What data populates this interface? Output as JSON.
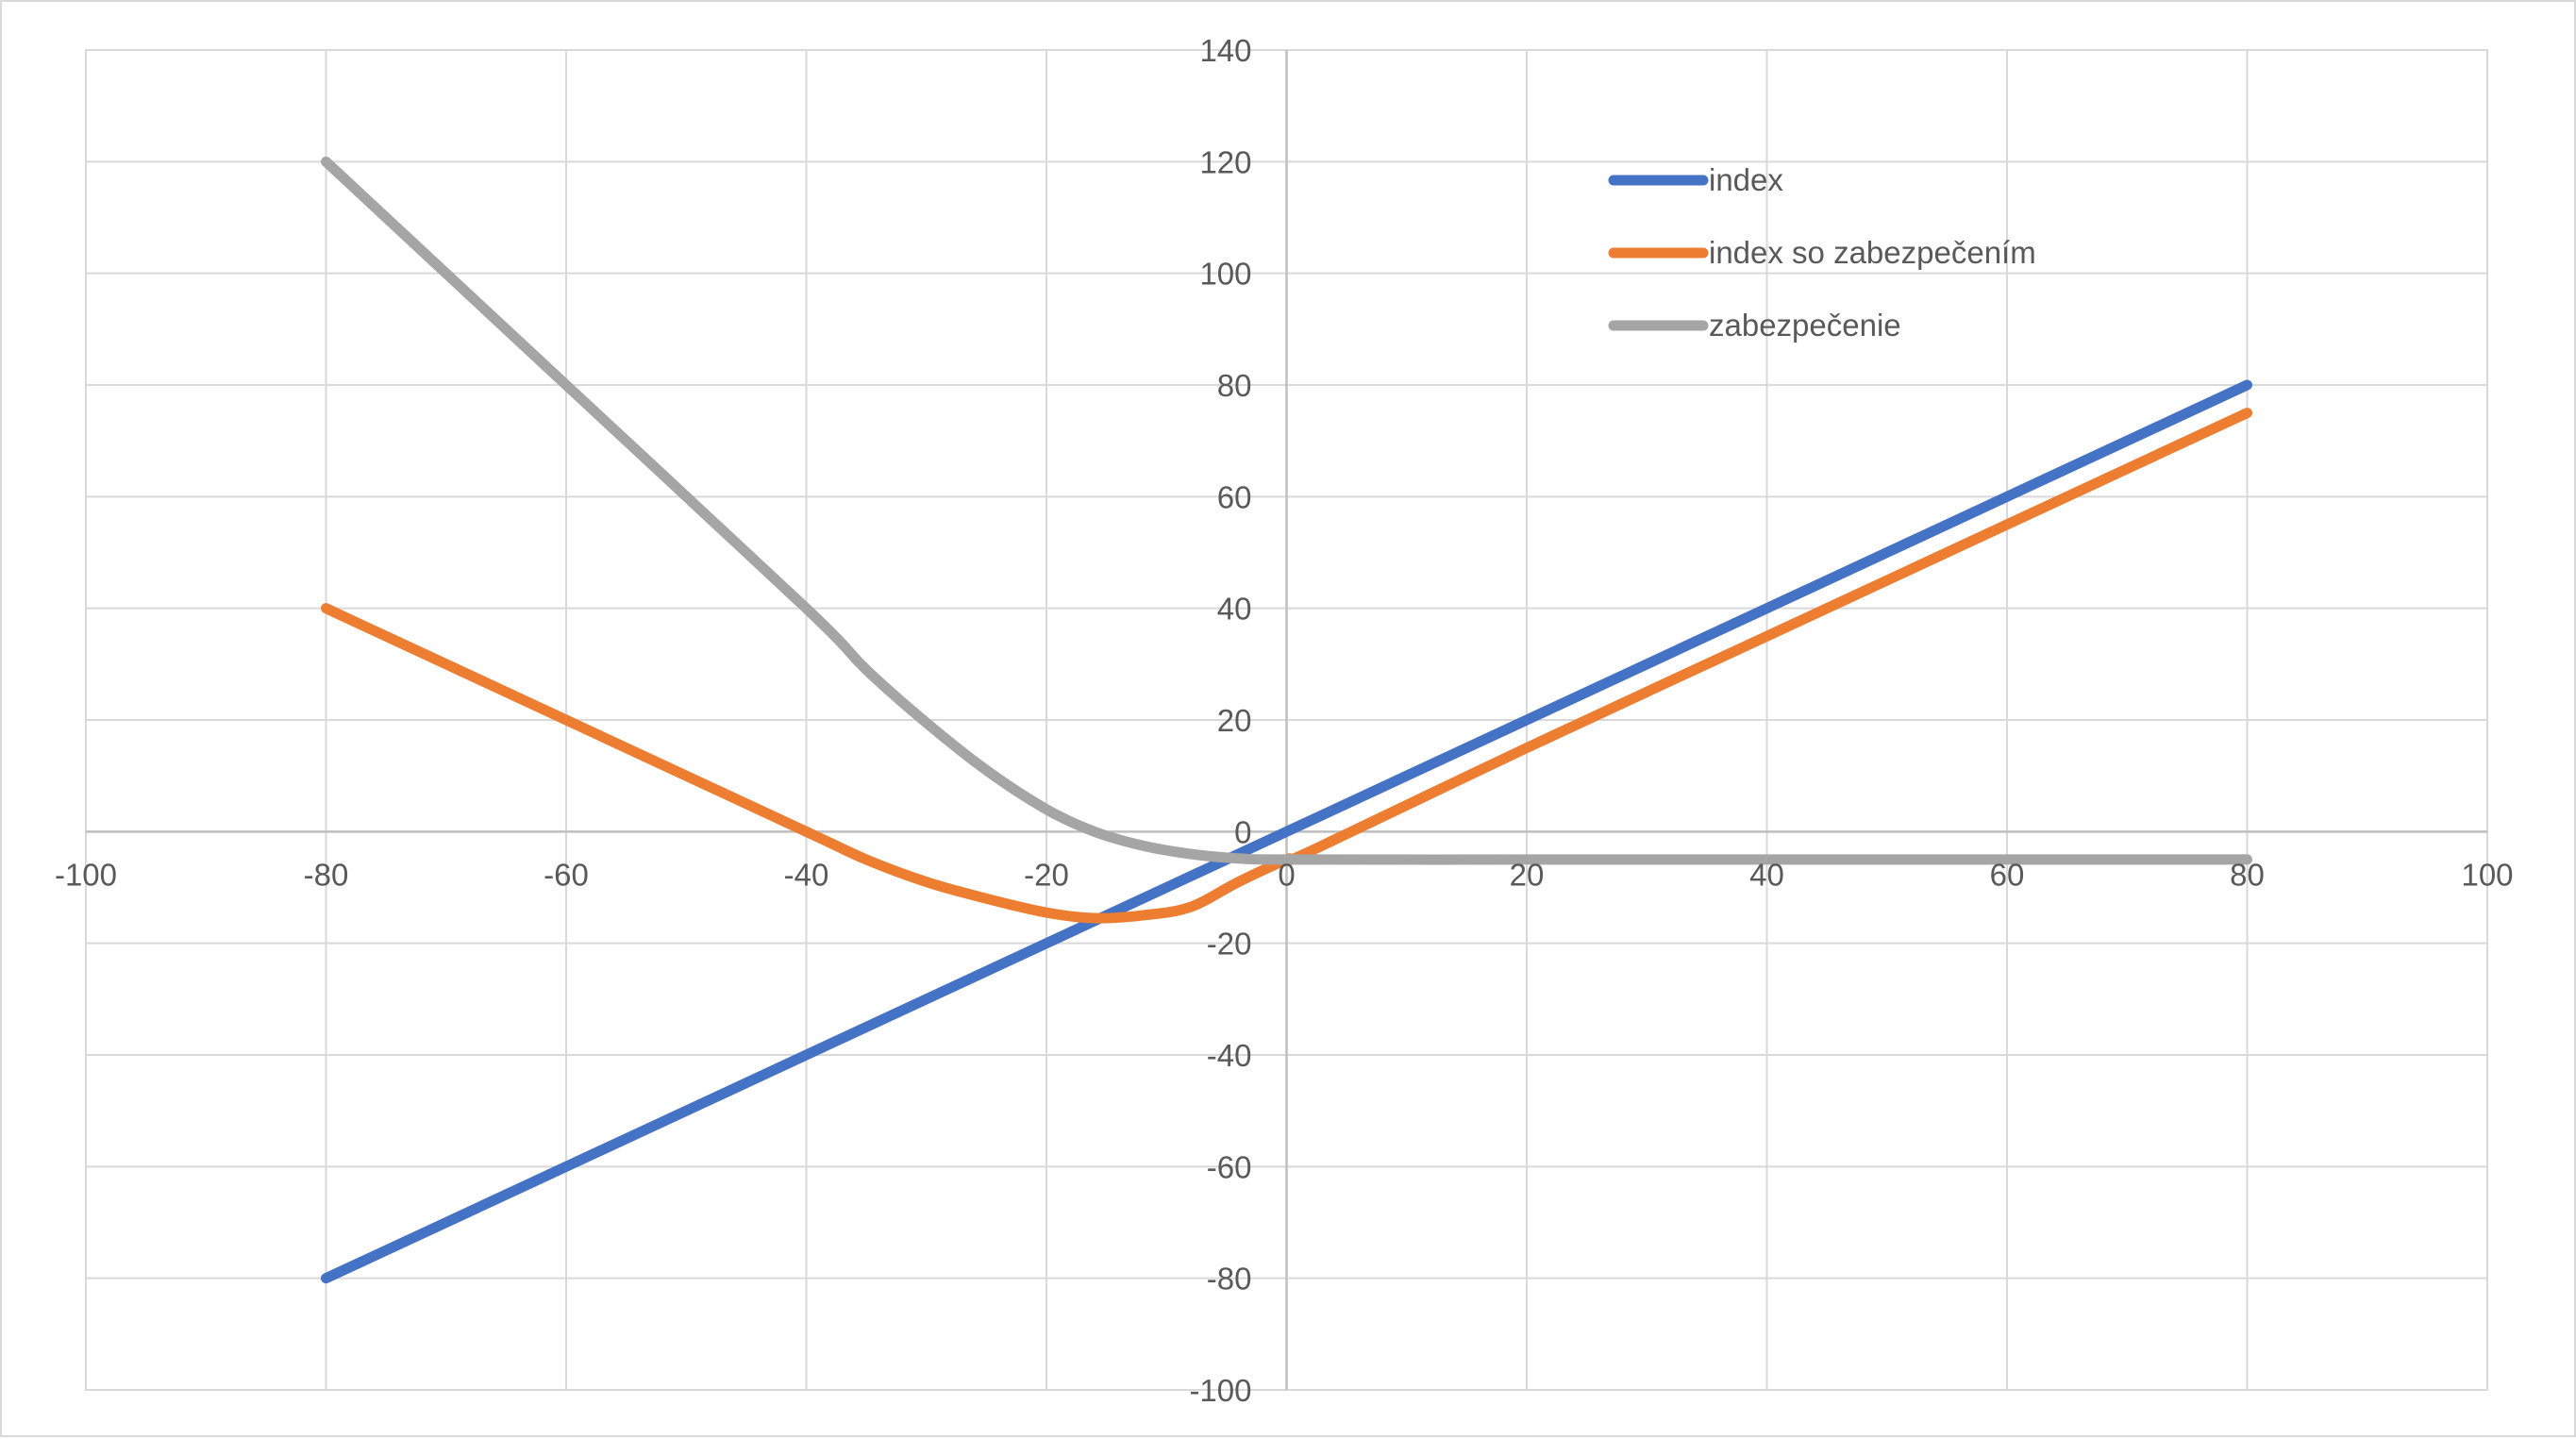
{
  "chart_data": {
    "type": "line",
    "title": "",
    "xlabel": "",
    "ylabel": "",
    "xlim": [
      -100,
      100
    ],
    "ylim": [
      -100,
      140
    ],
    "x_ticks": [
      -100,
      -80,
      -60,
      -40,
      -20,
      0,
      20,
      40,
      60,
      80,
      100
    ],
    "y_ticks": [
      -100,
      -80,
      -60,
      -40,
      -20,
      0,
      20,
      40,
      60,
      80,
      100,
      120,
      140
    ],
    "x_tick_labels": [
      "-100",
      "-80",
      "-60",
      "-40",
      "-20",
      "0",
      "20",
      "40",
      "60",
      "80",
      "100"
    ],
    "y_tick_labels": [
      "-100",
      "-80",
      "-60",
      "-40",
      "-20",
      "0",
      "20",
      "40",
      "60",
      "80",
      "100",
      "120",
      "140"
    ],
    "grid": true,
    "legend_position": "top-right",
    "series": [
      {
        "name": "index",
        "color": "#4472c4",
        "x": [
          -80,
          80
        ],
        "y": [
          -80,
          80
        ]
      },
      {
        "name": "index so zabezpečením",
        "color": "#ed7d31",
        "x": [
          -80,
          -60,
          -40,
          -35,
          -30,
          -25,
          -20,
          -16,
          -12,
          -8,
          -4,
          0,
          2,
          20,
          40,
          60,
          80
        ],
        "y": [
          40,
          20,
          0,
          -5,
          -9,
          -12,
          -14.5,
          -15.5,
          -15,
          -13.5,
          -9,
          -5,
          -3.5,
          15,
          35,
          55,
          75
        ]
      },
      {
        "name": "zabezpečenie",
        "color": "#a5a5a5",
        "x": [
          -80,
          -60,
          -40,
          -35,
          -30,
          -25,
          -20,
          -16,
          -12,
          -8,
          -4,
          0,
          20,
          40,
          60,
          80
        ],
        "y": [
          120,
          80,
          40,
          29,
          19.5,
          11,
          4,
          0,
          -2.5,
          -4,
          -4.8,
          -5,
          -5,
          -5,
          -5,
          -5
        ]
      }
    ]
  }
}
